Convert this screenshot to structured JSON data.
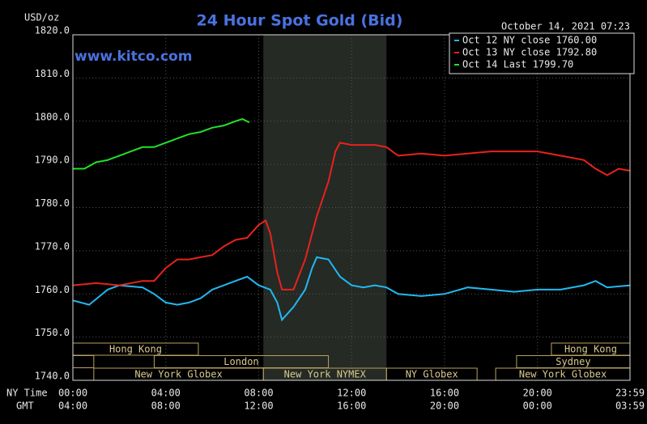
{
  "chart_data": {
    "type": "line",
    "title": "24 Hour Spot Gold (Bid)",
    "source": "www.kitco.com",
    "timestamp": "October 14, 2021 07:23",
    "y_label": "USD/oz",
    "x_label": "NY Time",
    "x2_label": "GMT",
    "xlim": [
      0,
      23.983
    ],
    "xticks": [
      {
        "value": 0,
        "label": "00:00"
      },
      {
        "value": 4,
        "label": "04:00"
      },
      {
        "value": 8,
        "label": "08:00"
      },
      {
        "value": 12,
        "label": "12:00"
      },
      {
        "value": 16,
        "label": "16:00"
      },
      {
        "value": 20,
        "label": "20:00"
      },
      {
        "value": 23.983,
        "label": "23:59"
      }
    ],
    "x2ticks": [
      {
        "value": 0,
        "label": "04:00"
      },
      {
        "value": 4,
        "label": "08:00"
      },
      {
        "value": 8,
        "label": "12:00"
      },
      {
        "value": 12,
        "label": "16:00"
      },
      {
        "value": 16,
        "label": "20:00"
      },
      {
        "value": 20,
        "label": "00:00"
      },
      {
        "value": 23.983,
        "label": "03:59"
      }
    ],
    "ylim": [
      1740,
      1820
    ],
    "yticks": [
      {
        "value": 1740,
        "label": "1740.0"
      },
      {
        "value": 1750,
        "label": "1750.0"
      },
      {
        "value": 1760,
        "label": "1760.0"
      },
      {
        "value": 1770,
        "label": "1770.0"
      },
      {
        "value": 1780,
        "label": "1780.0"
      },
      {
        "value": 1790,
        "label": "1790.0"
      },
      {
        "value": 1800,
        "label": "1800.0"
      },
      {
        "value": 1810,
        "label": "1810.0"
      },
      {
        "value": 1820,
        "label": "1820.0"
      }
    ],
    "grid": true,
    "highlight": [
      8.2,
      13.5
    ],
    "series": [
      {
        "name": "Oct 12 NY close 1760.00",
        "color": "#22b8f0",
        "x": [
          0,
          0.7,
          1.5,
          2,
          3,
          3.5,
          4,
          4.5,
          5,
          5.5,
          6,
          6.5,
          7,
          7.5,
          8,
          8.5,
          8.8,
          9.0,
          9.5,
          10,
          10.3,
          10.5,
          11,
          11.5,
          12,
          12.5,
          13,
          13.5,
          14,
          15,
          16,
          17,
          18,
          19,
          20,
          21,
          22,
          22.5,
          23,
          24
        ],
        "values": [
          1758.5,
          1757.5,
          1761,
          1762,
          1761.5,
          1760,
          1758,
          1757.5,
          1758,
          1759,
          1761,
          1762,
          1763,
          1764,
          1762,
          1761,
          1758,
          1754,
          1757,
          1761,
          1766,
          1768.5,
          1768,
          1764,
          1762,
          1761.5,
          1762,
          1761.5,
          1760,
          1759.5,
          1760,
          1761.5,
          1761,
          1760.5,
          1761,
          1761,
          1762,
          1763,
          1761.5,
          1762
        ]
      },
      {
        "name": "Oct 13 NY close 1792.80",
        "color": "#e8221c",
        "x": [
          0,
          1,
          2,
          3,
          3.5,
          4,
          4.5,
          5,
          6,
          6.5,
          7,
          7.5,
          8,
          8.3,
          8.5,
          8.8,
          9.0,
          9.5,
          10,
          10.5,
          11,
          11.3,
          11.5,
          12,
          13,
          13.5,
          14,
          15,
          16,
          17,
          18,
          19,
          20,
          21,
          22,
          22.5,
          23,
          23.5,
          24
        ],
        "values": [
          1762,
          1762.5,
          1762,
          1763,
          1763,
          1766,
          1768,
          1768,
          1769,
          1771,
          1772.5,
          1773,
          1776,
          1777,
          1774,
          1765,
          1761,
          1761,
          1768,
          1778,
          1786,
          1793,
          1795,
          1794.5,
          1794.5,
          1794,
          1792,
          1792.5,
          1792,
          1792.5,
          1793,
          1793,
          1793,
          1792,
          1791,
          1789,
          1787.5,
          1789,
          1788.5
        ]
      },
      {
        "name": "Oct 14 Last 1799.70",
        "color": "#22e02a",
        "x": [
          0,
          0.5,
          1,
          1.5,
          2,
          2.5,
          3,
          3.5,
          4,
          4.5,
          5,
          5.5,
          6,
          6.5,
          7,
          7.3,
          7.6
        ],
        "values": [
          1789,
          1789,
          1790.5,
          1791,
          1792,
          1793,
          1794,
          1794,
          1795,
          1796,
          1797,
          1797.5,
          1798.5,
          1799,
          1800,
          1800.5,
          1799.7
        ]
      }
    ],
    "sessions": [
      [
        {
          "label": "Hong Kong",
          "start": 0,
          "end": 5.4
        },
        {
          "label": "Hong Kong",
          "start": 20.6,
          "end": 23.983
        }
      ],
      [
        {
          "label": null,
          "start": 0,
          "end": 0.9
        },
        {
          "label": "London",
          "start": 3.5,
          "end": 11
        },
        {
          "label": "Sydney",
          "start": 19.1,
          "end": 23.983
        }
      ],
      [
        {
          "label": "New York Globex",
          "start": 0.9,
          "end": 8.2
        },
        {
          "label": "New York NYMEX",
          "start": 8.2,
          "end": 13.5
        },
        {
          "label": "NY Globex",
          "start": 13.5,
          "end": 17.4
        },
        {
          "label": "New York Globex",
          "start": 18.2,
          "end": 23.983
        }
      ]
    ]
  }
}
